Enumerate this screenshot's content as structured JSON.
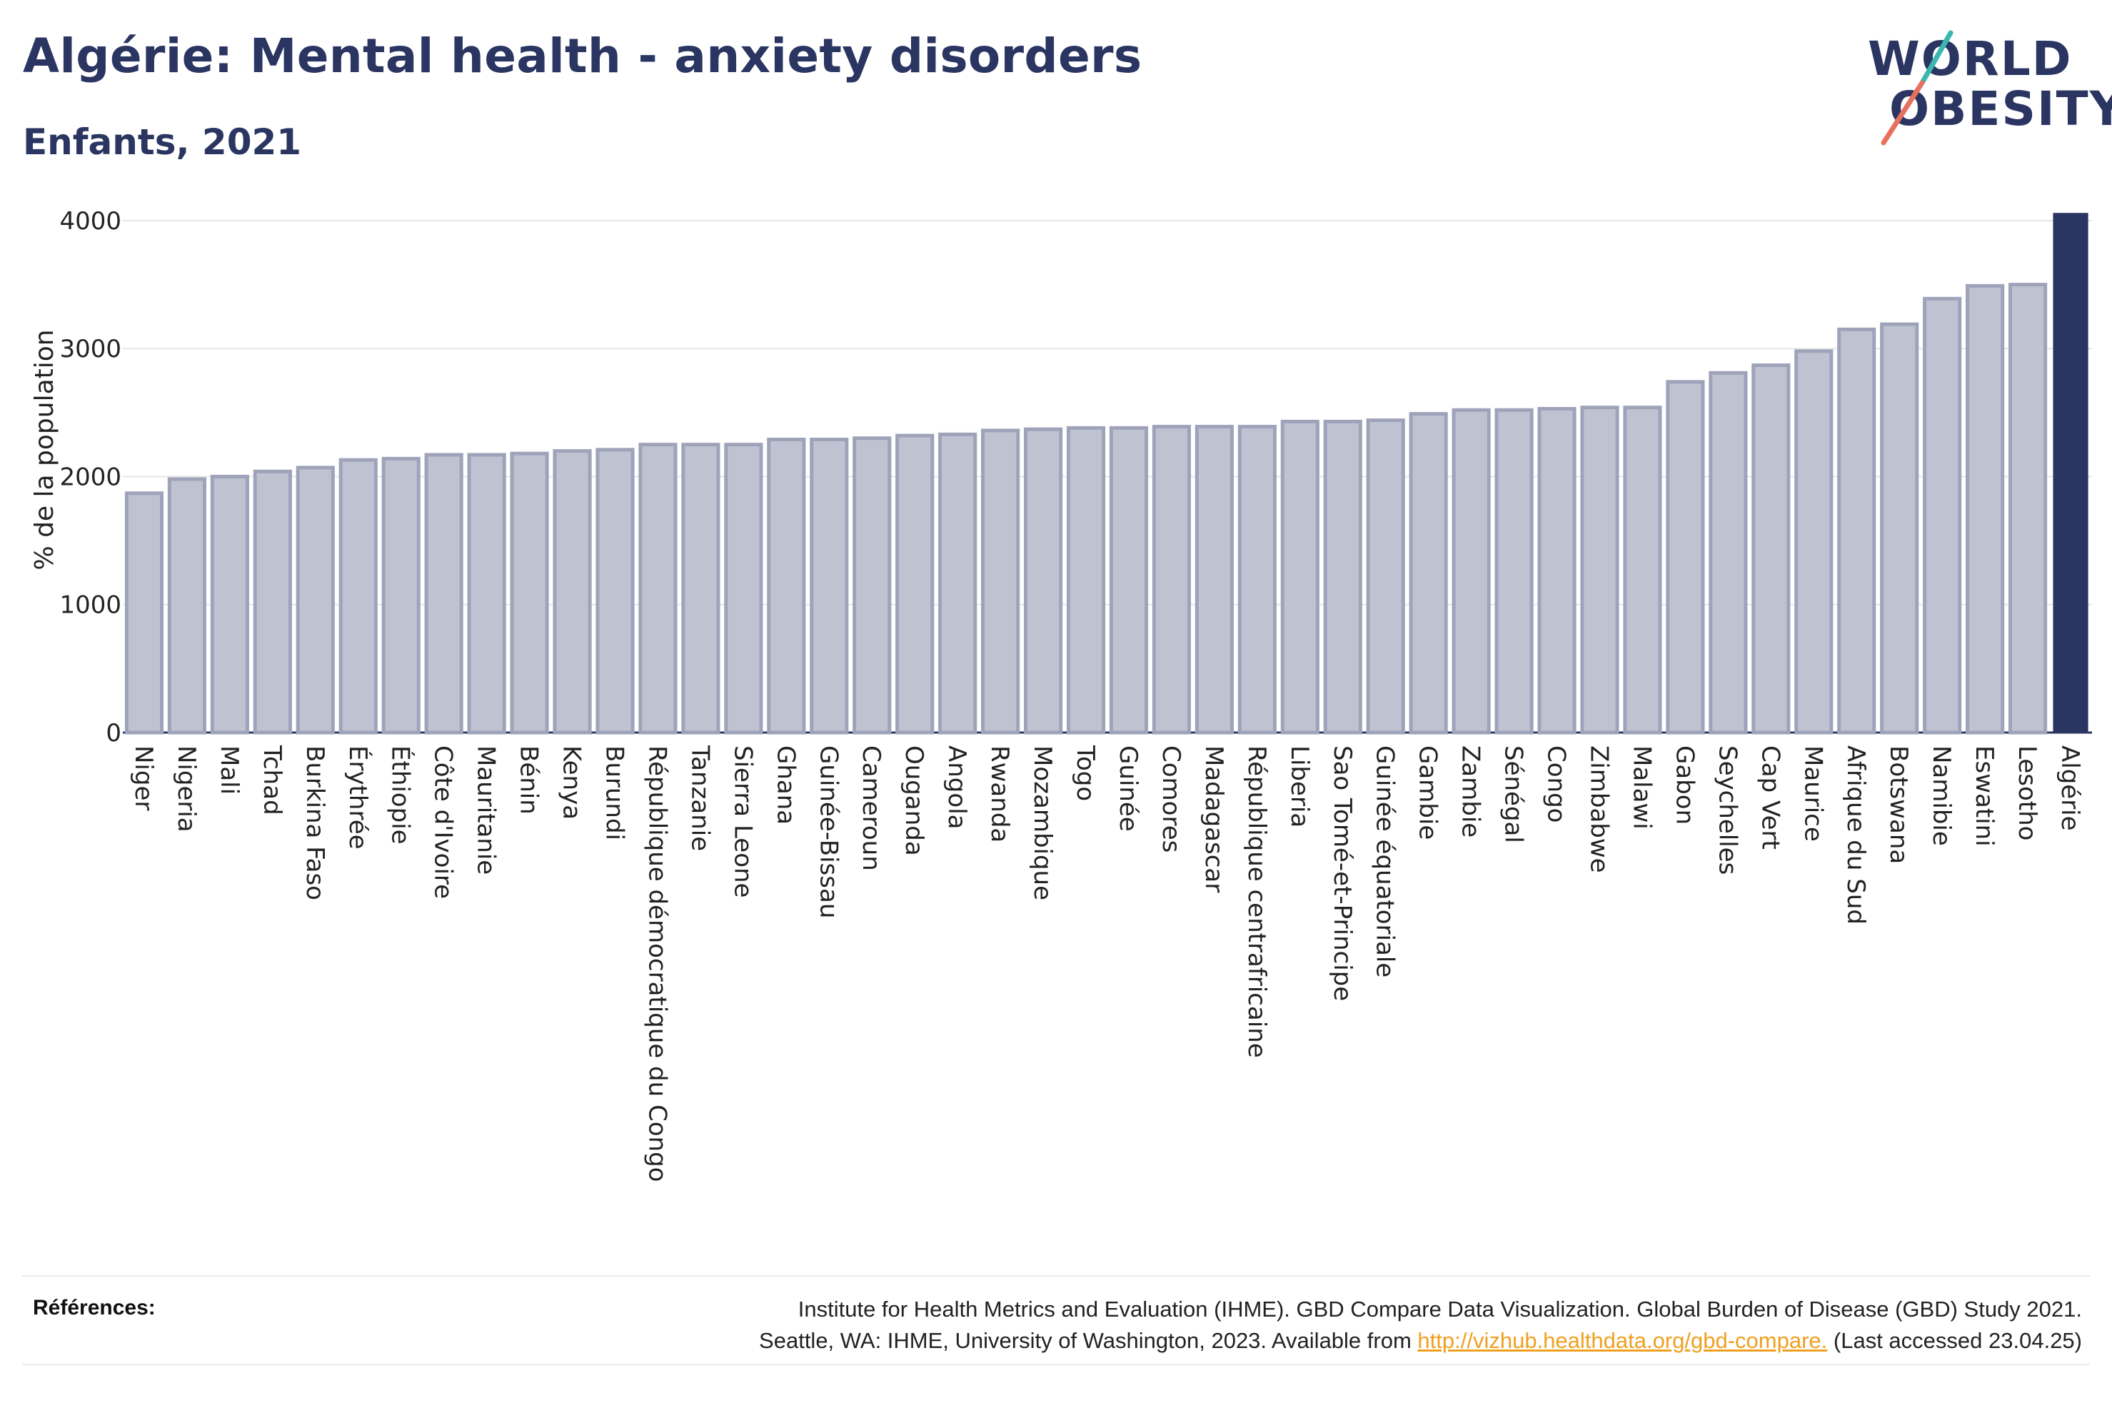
{
  "title": "Algérie: Mental health - anxiety disorders",
  "subtitle": "Enfants, 2021",
  "logo": {
    "line1": "WORLD",
    "line2": "OBESITY"
  },
  "colors": {
    "highlight": "#2a3561",
    "bar_fill": "#bfc3d1",
    "bar_stroke": "#9ea3ba",
    "text": "#2a3561",
    "link": "#f0a020",
    "logo_slash_teal": "#3bb7b0",
    "logo_slash_coral": "#e8705e"
  },
  "chart_data": {
    "type": "bar",
    "ylabel": "% de la population",
    "xlabel": "",
    "ylim": [
      0,
      4050
    ],
    "yticks": [
      0,
      1000,
      2000,
      3000,
      4000
    ],
    "grid": true,
    "highlight": "Algérie",
    "categories": [
      "Niger",
      "Nigeria",
      "Mali",
      "Tchad",
      "Burkina Faso",
      "Érythrée",
      "Éthiopie",
      "Côte d'Ivoire",
      "Mauritanie",
      "Bénin",
      "Kenya",
      "Burundi",
      "République démocratique du Congo",
      "Tanzanie",
      "Sierra Leone",
      "Ghana",
      "Guinée-Bissau",
      "Cameroun",
      "Ouganda",
      "Angola",
      "Rwanda",
      "Mozambique",
      "Togo",
      "Guinée",
      "Comores",
      "Madagascar",
      "République centrafricaine",
      "Liberia",
      "Sao Tomé-et-Principe",
      "Guinée équatoriale",
      "Gambie",
      "Zambie",
      "Sénégal",
      "Congo",
      "Zimbabwe",
      "Malawi",
      "Gabon",
      "Seychelles",
      "Cap Vert",
      "Maurice",
      "Afrique du Sud",
      "Botswana",
      "Namibie",
      "Eswatini",
      "Lesotho",
      "Algérie"
    ],
    "values": [
      1870,
      1980,
      2000,
      2040,
      2070,
      2130,
      2140,
      2170,
      2170,
      2180,
      2200,
      2210,
      2250,
      2250,
      2250,
      2290,
      2290,
      2300,
      2320,
      2330,
      2360,
      2370,
      2380,
      2380,
      2390,
      2390,
      2390,
      2430,
      2430,
      2440,
      2490,
      2520,
      2520,
      2530,
      2540,
      2540,
      2740,
      2810,
      2870,
      2980,
      3150,
      3190,
      3390,
      3490,
      3500,
      4060
    ]
  },
  "references": {
    "label": "Références:",
    "line1": "Institute for Health Metrics and Evaluation (IHME). GBD Compare Data Visualization. Global Burden of Disease (GBD) Study 2021.",
    "line2_prefix": "Seattle, WA: IHME, University of Washington, 2023. Available from ",
    "link": "http://vizhub.healthdata.org/gbd-compare.",
    "line2_suffix": " (Last accessed 23.04.25)"
  }
}
